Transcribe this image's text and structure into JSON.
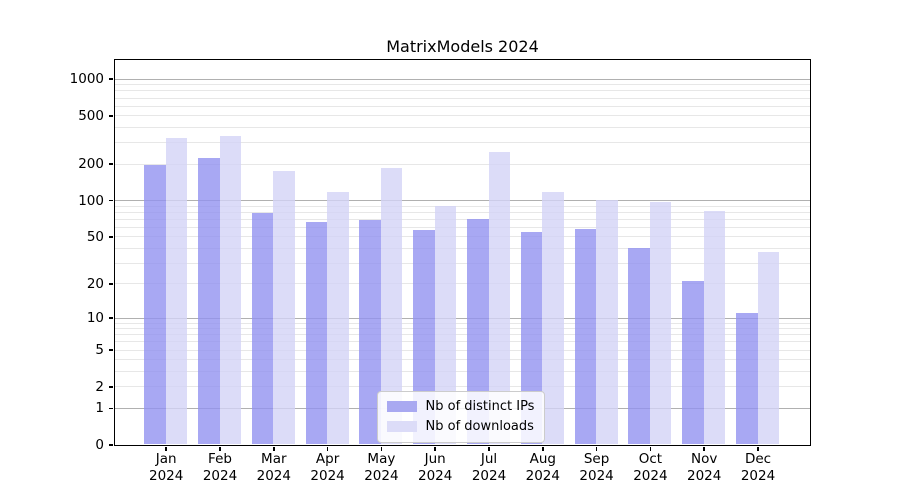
{
  "chart_data": {
    "type": "bar",
    "title": "MatrixModels 2024",
    "categories": [
      "Jan",
      "Feb",
      "Mar",
      "Apr",
      "May",
      "Jun",
      "Jul",
      "Aug",
      "Sep",
      "Oct",
      "Nov",
      "Dec"
    ],
    "x_year_suffix": "2024",
    "series": [
      {
        "name": "Nb of distinct IPs",
        "color": "#a9a9f1",
        "fill": "rgba(146,146,240,0.8)",
        "values": [
          195,
          222,
          78,
          66,
          69,
          56,
          70,
          54,
          57,
          40,
          21,
          11
        ]
      },
      {
        "name": "Nb of downloads",
        "color": "#dcdcf8",
        "fill": "rgba(211,211,246,0.8)",
        "values": [
          328,
          335,
          173,
          116,
          186,
          89,
          250,
          117,
          101,
          97,
          81,
          37
        ]
      }
    ],
    "yscale": "log1p",
    "ylim": [
      0,
      1437
    ],
    "yticks": [
      0,
      1,
      2,
      5,
      10,
      20,
      50,
      100,
      200,
      500,
      1000
    ],
    "grid": {
      "major_lines": [
        1,
        10,
        100,
        1000
      ],
      "minor_multipliers": [
        2,
        3,
        4,
        5,
        6,
        7,
        8,
        9
      ],
      "major_color": "#b0b0b0",
      "minor_color": "#e7e7e7"
    },
    "legend_position": "lower-center",
    "axis_color": "#000000",
    "background_color": "#ffffff"
  }
}
